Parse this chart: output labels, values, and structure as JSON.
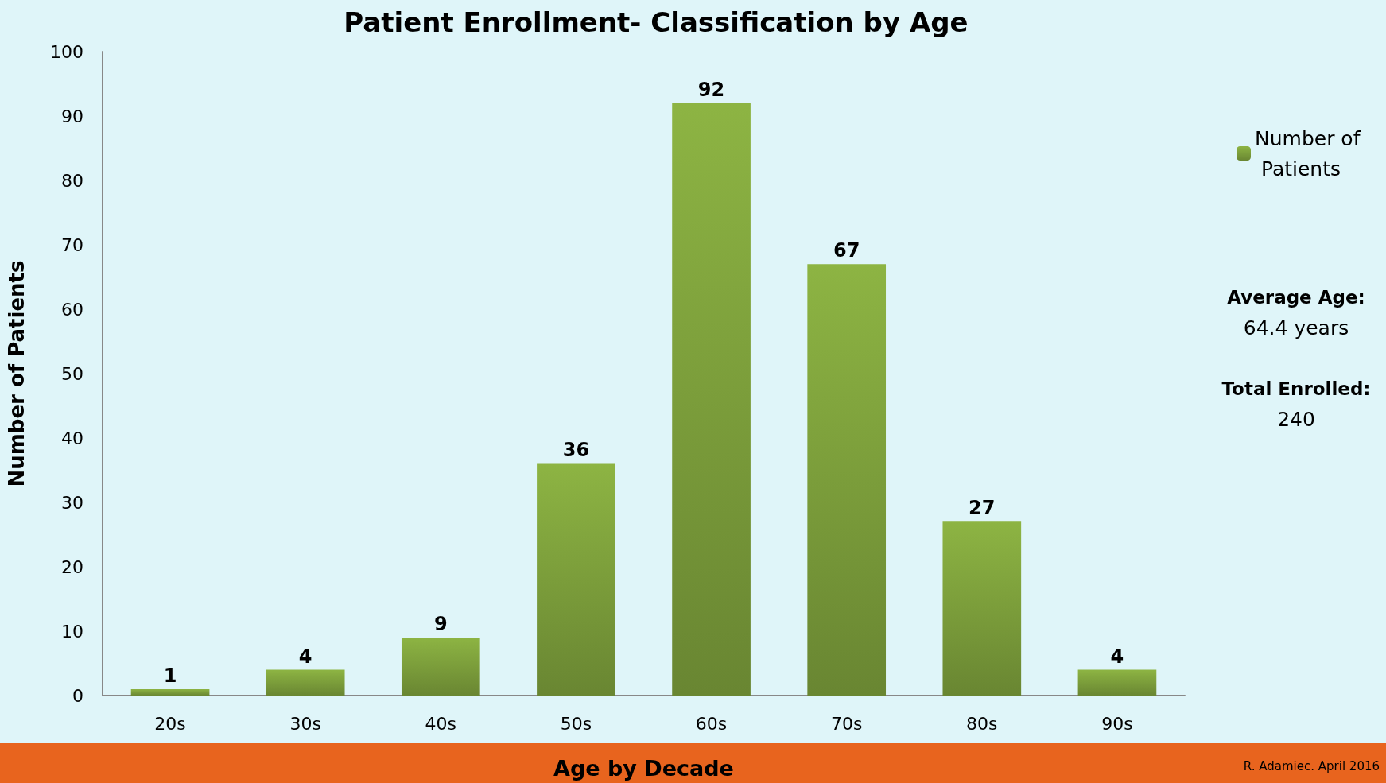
{
  "chart_data": {
    "type": "bar",
    "title": "Patient Enrollment- Classification by Age",
    "xlabel": "Age by Decade",
    "ylabel": "Number of Patients",
    "categories": [
      "20s",
      "30s",
      "40s",
      "50s",
      "60s",
      "70s",
      "80s",
      "90s"
    ],
    "series": [
      {
        "name": "Number of Patients",
        "color": "#8db443",
        "values": [
          1,
          4,
          9,
          36,
          92,
          67,
          27,
          4
        ]
      }
    ],
    "ylim": [
      0,
      100
    ],
    "yticks": [
      0,
      10,
      20,
      30,
      40,
      50,
      60,
      70,
      80,
      90,
      100
    ],
    "grid": false,
    "legend": "right",
    "data_labels": true,
    "annotations": [
      "Average Age:\n64.4 years",
      "Total Enrolled:\n240",
      "R. Adamiec. April 2016"
    ]
  }
}
